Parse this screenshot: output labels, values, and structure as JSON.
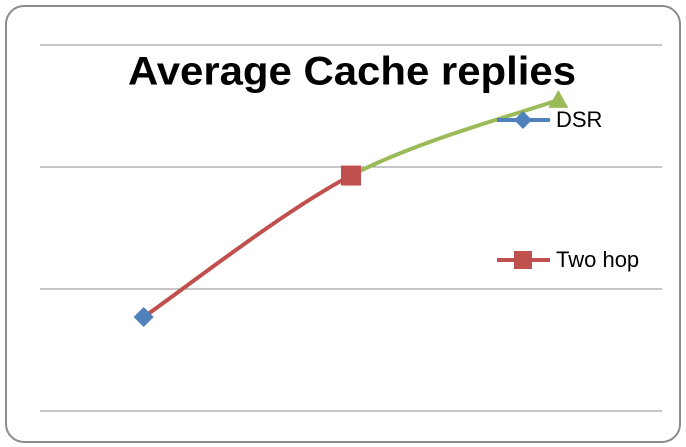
{
  "chart_data": {
    "type": "line",
    "title": "Average Cache replies",
    "categories": [
      "DSR",
      "Two hop",
      null
    ],
    "series": [
      {
        "name": null,
        "values": [
          0.77,
          1.93,
          2.55
        ],
        "colors": [
          "#4f81bd",
          "#c0504d",
          "#9bbb59"
        ],
        "markers": [
          "diamond",
          "square",
          "triangle"
        ]
      }
    ],
    "ylim": [
      0,
      3
    ],
    "yticks": [
      0,
      1,
      2,
      3
    ],
    "grid": true,
    "vary_colors_by_point": true,
    "smooth": true
  }
}
